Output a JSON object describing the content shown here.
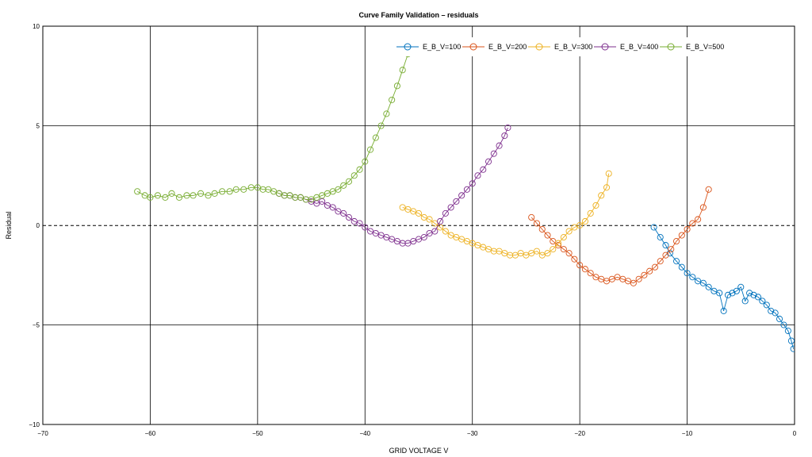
{
  "chart_data": {
    "type": "line",
    "title": "Curve Family Validation – residuals",
    "xlabel": "GRID VOLTAGE V",
    "ylabel": "Residual",
    "xlim": [
      -70,
      0
    ],
    "ylim": [
      -10,
      10
    ],
    "xticks": [
      -70,
      -60,
      -50,
      -40,
      -30,
      -20,
      -10,
      0
    ],
    "yticks": [
      -10,
      -5,
      0,
      5,
      10
    ],
    "xtick_labels": [
      "−70",
      "−60",
      "−50",
      "−40",
      "−30",
      "−20",
      "−10",
      "0"
    ],
    "ytick_labels": [
      "−10",
      "−5",
      "0",
      "5",
      "10"
    ],
    "grid": true,
    "zero_line": "dashed",
    "legend_position": "top-right",
    "marker": "open-circle",
    "series": [
      {
        "name": "E_B_V=100",
        "color": "#0072BD",
        "x": [
          -13.1,
          -12.5,
          -12.0,
          -11.6,
          -11.0,
          -10.5,
          -10.0,
          -9.5,
          -9.0,
          -8.5,
          -8.0,
          -7.5,
          -7.0,
          -6.6,
          -6.2,
          -5.8,
          -5.4,
          -5.0,
          -4.6,
          -4.2,
          -3.8,
          -3.4,
          -3.0,
          -2.6,
          -2.2,
          -1.8,
          -1.4,
          -1.0,
          -0.6,
          -0.3,
          -0.1
        ],
        "y": [
          -0.1,
          -0.6,
          -1.0,
          -1.4,
          -1.8,
          -2.1,
          -2.4,
          -2.6,
          -2.8,
          -2.9,
          -3.1,
          -3.3,
          -3.4,
          -4.3,
          -3.5,
          -3.4,
          -3.3,
          -3.1,
          -3.8,
          -3.4,
          -3.5,
          -3.6,
          -3.8,
          -4.0,
          -4.3,
          -4.4,
          -4.7,
          -5.0,
          -5.3,
          -5.8,
          -6.2
        ]
      },
      {
        "name": "E_B_V=200",
        "color": "#D95319",
        "x": [
          -24.5,
          -24.0,
          -23.5,
          -23.0,
          -22.5,
          -22.0,
          -21.5,
          -21.0,
          -20.5,
          -20.0,
          -19.5,
          -19.0,
          -18.5,
          -18.0,
          -17.5,
          -17.0,
          -16.5,
          -16.0,
          -15.5,
          -15.0,
          -14.5,
          -14.0,
          -13.5,
          -13.0,
          -12.5,
          -12.0,
          -11.5,
          -11.0,
          -10.5,
          -10.0,
          -9.5,
          -9.0,
          -8.5,
          -8.0
        ],
        "y": [
          0.4,
          0.1,
          -0.2,
          -0.5,
          -0.8,
          -1.0,
          -1.2,
          -1.4,
          -1.7,
          -2.0,
          -2.2,
          -2.4,
          -2.6,
          -2.7,
          -2.8,
          -2.7,
          -2.6,
          -2.7,
          -2.8,
          -2.9,
          -2.7,
          -2.5,
          -2.3,
          -2.1,
          -1.8,
          -1.5,
          -1.2,
          -0.8,
          -0.5,
          -0.2,
          0.1,
          0.3,
          0.9,
          1.8
        ]
      },
      {
        "name": "E_B_V=300",
        "color": "#EDB120",
        "x": [
          -36.5,
          -36.0,
          -35.5,
          -35.0,
          -34.5,
          -34.0,
          -33.5,
          -33.0,
          -32.5,
          -32.0,
          -31.5,
          -31.0,
          -30.5,
          -30.0,
          -29.5,
          -29.0,
          -28.5,
          -28.0,
          -27.5,
          -27.0,
          -26.5,
          -26.0,
          -25.5,
          -25.0,
          -24.5,
          -24.0,
          -23.5,
          -23.0,
          -22.5,
          -22.0,
          -21.5,
          -21.0,
          -20.5,
          -20.0,
          -19.5,
          -19.0,
          -18.5,
          -18.0,
          -17.5,
          -17.3
        ],
        "y": [
          0.9,
          0.8,
          0.7,
          0.6,
          0.4,
          0.3,
          0.1,
          -0.1,
          -0.3,
          -0.5,
          -0.6,
          -0.7,
          -0.8,
          -0.9,
          -1.0,
          -1.1,
          -1.2,
          -1.3,
          -1.3,
          -1.4,
          -1.5,
          -1.5,
          -1.4,
          -1.5,
          -1.4,
          -1.3,
          -1.5,
          -1.4,
          -1.2,
          -0.9,
          -0.6,
          -0.3,
          -0.1,
          0.0,
          0.2,
          0.6,
          1.0,
          1.5,
          1.9,
          2.6
        ]
      },
      {
        "name": "E_B_V=400",
        "color": "#7E2F8E",
        "x": [
          -48.0,
          -47.5,
          -47.0,
          -46.5,
          -46.0,
          -45.5,
          -45.0,
          -44.5,
          -44.0,
          -43.5,
          -43.0,
          -42.5,
          -42.0,
          -41.5,
          -41.0,
          -40.5,
          -40.0,
          -39.5,
          -39.0,
          -38.5,
          -38.0,
          -37.5,
          -37.0,
          -36.5,
          -36.0,
          -35.5,
          -35.0,
          -34.5,
          -34.0,
          -33.5,
          -33.0,
          -32.5,
          -32.0,
          -31.5,
          -31.0,
          -30.5,
          -30.0,
          -29.5,
          -29.0,
          -28.5,
          -28.0,
          -27.5,
          -27.0,
          -26.7
        ],
        "y": [
          1.6,
          1.5,
          1.5,
          1.4,
          1.4,
          1.3,
          1.2,
          1.1,
          1.2,
          1.0,
          0.9,
          0.7,
          0.6,
          0.4,
          0.2,
          0.1,
          -0.1,
          -0.3,
          -0.4,
          -0.5,
          -0.6,
          -0.7,
          -0.8,
          -0.9,
          -0.9,
          -0.8,
          -0.7,
          -0.6,
          -0.4,
          -0.3,
          0.2,
          0.6,
          0.9,
          1.2,
          1.5,
          1.8,
          2.1,
          2.5,
          2.8,
          3.2,
          3.6,
          4.0,
          4.5,
          4.9
        ]
      },
      {
        "name": "E_B_V=500",
        "color": "#77AC30",
        "x": [
          -61.2,
          -60.5,
          -60.0,
          -59.3,
          -58.6,
          -58.0,
          -57.3,
          -56.6,
          -56.0,
          -55.3,
          -54.6,
          -54.0,
          -53.3,
          -52.6,
          -52.0,
          -51.3,
          -50.6,
          -50.0,
          -49.5,
          -49.0,
          -48.5,
          -48.0,
          -47.5,
          -47.0,
          -46.5,
          -46.0,
          -45.5,
          -45.0,
          -44.5,
          -44.0,
          -43.5,
          -43.0,
          -42.5,
          -42.0,
          -41.5,
          -41.0,
          -40.5,
          -40.0,
          -39.5,
          -39.0,
          -38.5,
          -38.0,
          -37.5,
          -37.0,
          -36.5,
          -36.0
        ],
        "y": [
          1.7,
          1.5,
          1.4,
          1.5,
          1.4,
          1.6,
          1.4,
          1.5,
          1.5,
          1.6,
          1.5,
          1.6,
          1.7,
          1.7,
          1.8,
          1.8,
          1.9,
          1.9,
          1.8,
          1.8,
          1.7,
          1.6,
          1.5,
          1.5,
          1.4,
          1.4,
          1.3,
          1.3,
          1.4,
          1.5,
          1.6,
          1.7,
          1.8,
          2.0,
          2.2,
          2.5,
          2.8,
          3.2,
          3.8,
          4.4,
          5.0,
          5.6,
          6.3,
          7.0,
          7.8,
          8.6
        ]
      }
    ]
  }
}
